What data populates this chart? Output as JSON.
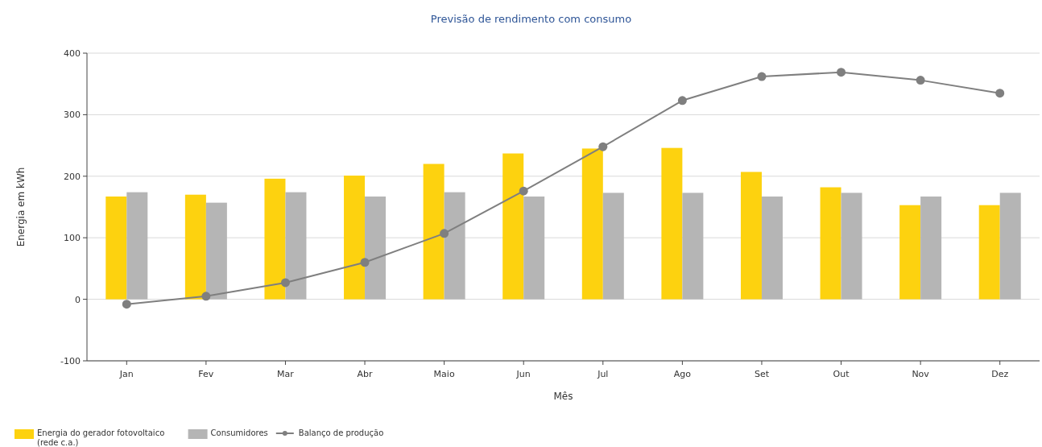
{
  "chart_data": {
    "type": "bar",
    "title": "Previsão de rendimento com consumo",
    "xlabel": "Mês",
    "ylabel": "Energia em kWh",
    "categories": [
      "Jan",
      "Fev",
      "Mar",
      "Abr",
      "Maio",
      "Jun",
      "Jul",
      "Ago",
      "Set",
      "Out",
      "Nov",
      "Dez"
    ],
    "series": [
      {
        "name": "Energia do gerador fotovoltaico (rede c.a.)",
        "color": "#fdd20f",
        "values": [
          167,
          170,
          196,
          201,
          220,
          237,
          245,
          246,
          207,
          182,
          153,
          153
        ]
      },
      {
        "name": "Consumidores",
        "color": "#b5b5b5",
        "values": [
          174,
          157,
          174,
          167,
          174,
          167,
          173,
          173,
          167,
          173,
          167,
          173
        ]
      },
      {
        "name": "Balanço de produção",
        "type": "line",
        "color": "#7f7f7f",
        "marker": "circle",
        "values": [
          -8,
          5,
          27,
          60,
          107,
          176,
          248,
          323,
          362,
          369,
          356,
          335
        ]
      }
    ],
    "ylim": [
      -100,
      400
    ],
    "yticks": [
      -100,
      0,
      100,
      200,
      300,
      400
    ],
    "grid": "y",
    "legend": "bottom left"
  }
}
